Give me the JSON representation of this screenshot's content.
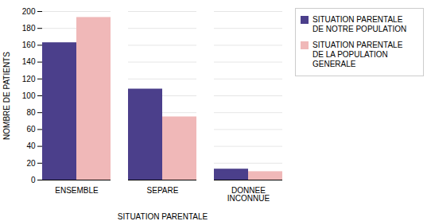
{
  "chart_data": {
    "type": "bar",
    "categories": [
      "ENSEMBLE",
      "SEPARE",
      "DONNEE\nINCONNUE"
    ],
    "series": [
      {
        "name": "SITUATION PARENTALE\nDE NOTRE POPULATION",
        "color": "#4B3F8B",
        "values": [
          163,
          108,
          13
        ]
      },
      {
        "name": "SITUATION PARENTALE\nDE LA POPULATION\nGENERALE",
        "color": "#F0B8B8",
        "values": [
          193,
          75,
          10
        ]
      }
    ],
    "xlabel": "SITUATION PARENTALE",
    "ylabel": "NOMBRE DE PATIENTS",
    "ylim": [
      0,
      200
    ],
    "yticks": [
      0,
      20,
      40,
      60,
      80,
      100,
      120,
      140,
      160,
      180,
      200
    ],
    "grid": true,
    "legend": "right"
  }
}
